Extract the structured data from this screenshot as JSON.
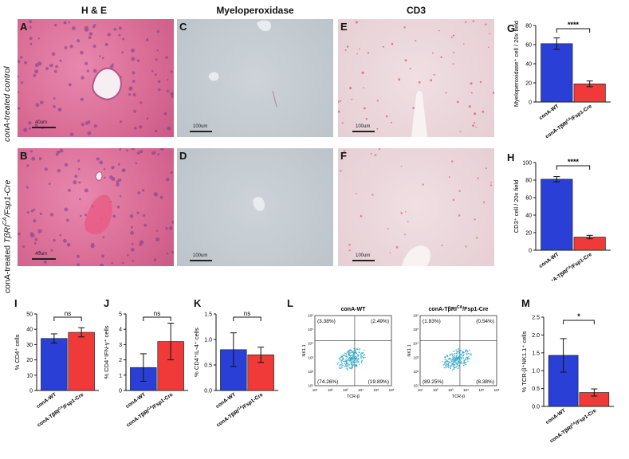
{
  "columns": {
    "he": "H & E",
    "mpo": "Myeloperoxidase",
    "cd3": "CD3"
  },
  "rows": {
    "top": "conA-treated control",
    "bottom_prefix": "conA-treated ",
    "bottom_italic": "TβRI",
    "bottom_sup": "CA",
    "bottom_suffix": "/Fsp1-Cre"
  },
  "tiles": {
    "A": {
      "letter": "A",
      "scale": "40um"
    },
    "B": {
      "letter": "B",
      "scale": "40um"
    },
    "C": {
      "letter": "C",
      "scale": "100um"
    },
    "D": {
      "letter": "D",
      "scale": "100um"
    },
    "E": {
      "letter": "E",
      "scale": "100um"
    },
    "F": {
      "letter": "F",
      "scale": "100um"
    }
  },
  "panel_letters": {
    "G": "G",
    "H": "H",
    "I": "I",
    "J": "J",
    "K": "K",
    "L": "L",
    "M": "M"
  },
  "flow": {
    "left_title": "conA-WT",
    "right_title": "conA-TβRI",
    "right_title_sup": "CA",
    "right_title_suffix": "/Fsp1-Cre",
    "ylabel": "NK1.1",
    "xlabel": "TCR-β",
    "left": {
      "ul": "(3.38%)",
      "ur": "(2.49%)",
      "ll": "(74.26%)",
      "lr": "(19.89%)"
    },
    "right": {
      "ul": "(1.83%)",
      "ur": "(0.54%)",
      "ll": "(89.25%)",
      "lr": "(8.38%)"
    },
    "xticks": [
      "10¹",
      "10²",
      "10³",
      "10⁴",
      "10⁵",
      "10⁶"
    ],
    "yticks": [
      "10¹",
      "10²",
      "10³",
      "10⁴",
      "10⁵",
      "10⁶"
    ]
  },
  "colors": {
    "wt": "#2a3fd6",
    "mut": "#f03a3a"
  },
  "chart_data": [
    {
      "panel": "G",
      "type": "bar",
      "categories": [
        "conA-WT",
        "conA-TβRI^CA/Fsp1-Cre"
      ],
      "values": [
        61,
        19
      ],
      "errors": [
        6,
        3
      ],
      "ylabel": "Myeloperoxidase⁺ cell / 20x field",
      "ylim": [
        0,
        80
      ],
      "yticks": [
        0,
        20,
        40,
        60,
        80
      ],
      "significance": "****"
    },
    {
      "panel": "H",
      "type": "bar",
      "categories": [
        "conA-WT",
        "conA-TβRI^CA/Fsp1-Cre"
      ],
      "values": [
        81,
        15
      ],
      "errors": [
        3,
        2
      ],
      "ylabel": "CD3⁺ cell / 20x field",
      "ylim": [
        0,
        100
      ],
      "yticks": [
        0,
        20,
        40,
        60,
        80,
        100
      ],
      "significance": "****"
    },
    {
      "panel": "I",
      "type": "bar",
      "categories": [
        "conA-WT",
        "conA-TβRI^CA/Fsp1-Cre"
      ],
      "values": [
        34,
        38
      ],
      "errors": [
        3,
        3
      ],
      "ylabel": "% CD4⁺ cells",
      "ylim": [
        0,
        50
      ],
      "yticks": [
        0,
        10,
        20,
        30,
        40,
        50
      ],
      "significance": "ns"
    },
    {
      "panel": "J",
      "type": "bar",
      "categories": [
        "conA-WT",
        "conA-TβRI^CA/Fsp1-Cre"
      ],
      "values": [
        1.5,
        3.2
      ],
      "errors": [
        0.9,
        1.2
      ],
      "ylabel": "% CD4⁺IFN-γ⁺ cells",
      "ylim": [
        0,
        5
      ],
      "yticks": [
        0,
        1,
        2,
        3,
        4,
        5
      ],
      "significance": "ns"
    },
    {
      "panel": "K",
      "type": "bar",
      "categories": [
        "conA-WT",
        "conA-TβRI^CA/Fsp1-Cre"
      ],
      "values": [
        0.8,
        0.7
      ],
      "errors": [
        0.33,
        0.15
      ],
      "ylabel": "% CD4⁺IL-4⁺ cells",
      "ylim": [
        0,
        1.5
      ],
      "yticks": [
        0.0,
        0.5,
        1.0,
        1.5
      ],
      "significance": "ns"
    },
    {
      "panel": "M",
      "type": "bar",
      "categories": [
        "conA-WT",
        "conA-TβRI^CA/Fsp1-Cre"
      ],
      "values": [
        1.43,
        0.39
      ],
      "errors": [
        0.47,
        0.1
      ],
      "ylabel": "% TCR-β⁺NK1.1⁺ cells",
      "ylim": [
        0,
        2.5
      ],
      "yticks": [
        0.0,
        0.5,
        1.0,
        1.5,
        2.0,
        2.5
      ],
      "significance": "*"
    }
  ]
}
